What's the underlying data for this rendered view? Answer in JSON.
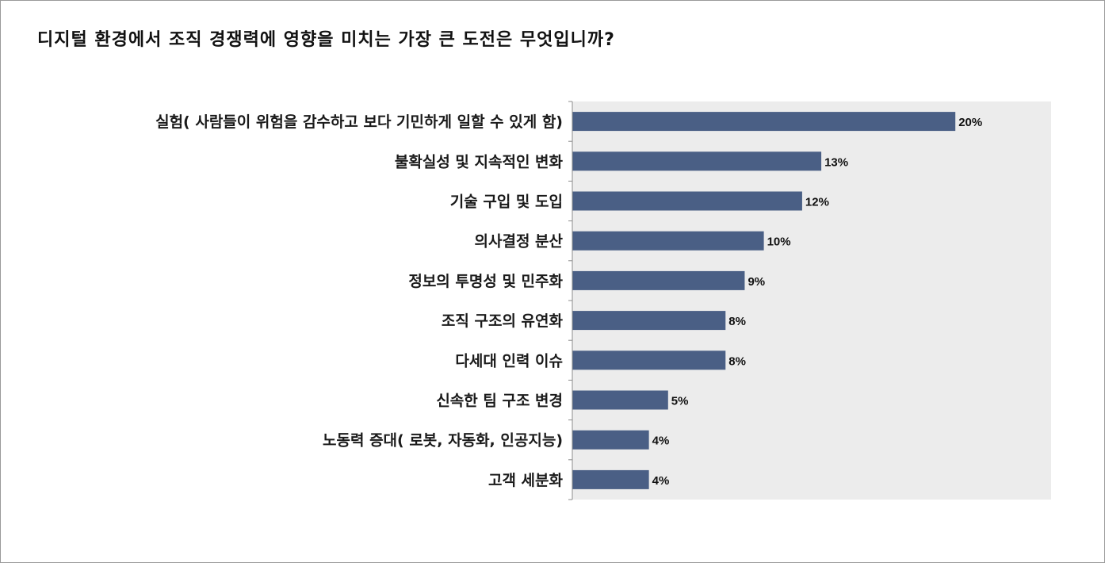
{
  "chart_data": {
    "type": "bar",
    "orientation": "horizontal",
    "title": "디지털 환경에서 조직 경쟁력에 영향을 미치는 가장 큰 도전은 무엇입니까?",
    "categories": [
      "실험( 사람들이 위험을 감수하고 보다 기민하게 일할 수 있게 함)",
      "불확실성 및 지속적인 변화",
      "기술 구입 및 도입",
      "의사결정 분산",
      "정보의 투명성 및 민주화",
      "조직 구조의 유연화",
      "다세대 인력 이슈",
      "신속한 팀 구조 변경",
      "노동력 증대( 로봇, 자동화, 인공지능)",
      "고객 세분화"
    ],
    "values": [
      20,
      13,
      12,
      10,
      9,
      8,
      8,
      5,
      4,
      4
    ],
    "value_labels": [
      "20%",
      "13%",
      "12%",
      "10%",
      "9%",
      "8%",
      "8%",
      "5%",
      "4%",
      "4%"
    ],
    "unit": "%",
    "xlim": [
      0,
      25
    ],
    "grid": false,
    "legend": "none",
    "colors": {
      "bar": "#4a5f85",
      "plot_background": "#ececec",
      "axis": "#8c8c8c"
    }
  }
}
